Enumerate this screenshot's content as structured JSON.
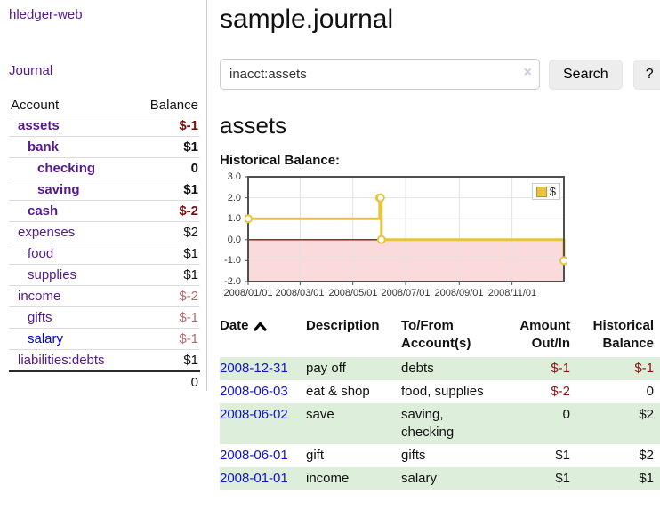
{
  "app": {
    "brand": "hledger-web"
  },
  "nav": {
    "journal": "Journal"
  },
  "header": {
    "title": "sample.journal"
  },
  "search": {
    "value": "inacct:assets",
    "clear_icon": "×",
    "search_button": "Search",
    "help_button": "?"
  },
  "sidebar": {
    "columns": {
      "account": "Account",
      "balance": "Balance"
    },
    "accounts": [
      {
        "name": "assets",
        "balance": "$-1",
        "indent": 0,
        "bold": true,
        "neg": "strong"
      },
      {
        "name": "bank",
        "balance": "$1",
        "indent": 1,
        "bold": true
      },
      {
        "name": "checking",
        "balance": "0",
        "indent": 2,
        "bold": true
      },
      {
        "name": "saving",
        "balance": "$1",
        "indent": 2,
        "bold": true
      },
      {
        "name": "cash",
        "balance": "$-2",
        "indent": 1,
        "bold": true,
        "neg": "strong"
      },
      {
        "name": "expenses",
        "balance": "$2",
        "indent": 0
      },
      {
        "name": "food",
        "balance": "$1",
        "indent": 1
      },
      {
        "name": "supplies",
        "balance": "$1",
        "indent": 1
      },
      {
        "name": "income",
        "balance": "$-2",
        "indent": 0,
        "neg": "soft"
      },
      {
        "name": "gifts",
        "balance": "$-1",
        "indent": 1,
        "neg": "soft"
      },
      {
        "name": "salary",
        "balance": "$-1",
        "indent": 1,
        "neg": "soft",
        "color": "blue"
      },
      {
        "name": "liabilities:debts",
        "balance": "$1",
        "indent": 0
      }
    ],
    "total": "0"
  },
  "main": {
    "account_title": "assets",
    "chart_heading": "Historical Balance:"
  },
  "chart_data": {
    "type": "line",
    "title": "Historical Balance:",
    "step": true,
    "x_range": [
      "2008-01-01",
      "2008-12-31"
    ],
    "ylim": [
      -2,
      3
    ],
    "y_ticks": [
      3,
      2,
      1,
      0,
      -1,
      -2
    ],
    "x_ticks": [
      "2008/01/01",
      "2008/03/01",
      "2008/05/01",
      "2008/07/01",
      "2008/09/01",
      "2008/11/01"
    ],
    "series": [
      {
        "name": "$",
        "color": "#e8c33e",
        "points": [
          [
            "2008-01-01",
            1
          ],
          [
            "2008-06-01",
            2
          ],
          [
            "2008-06-02",
            2
          ],
          [
            "2008-06-03",
            0
          ],
          [
            "2008-12-31",
            -1
          ]
        ]
      }
    ],
    "legend": {
      "label": "$",
      "position": "top-right"
    },
    "grid": true,
    "grid_color": "#e3e3e3",
    "frame_color": "#4f4f4f",
    "zero_line_color": "#8b1111",
    "negative_region_color": "#fadada"
  },
  "register": {
    "columns": [
      "Date",
      "Description",
      "To/From Account(s)",
      "Amount Out/In",
      "Historical Balance"
    ],
    "sort": {
      "column": "Date",
      "direction": "asc"
    },
    "rows": [
      {
        "date": "2008-12-31",
        "description": "pay off",
        "accounts": "debts",
        "amount": "$-1",
        "balance": "$-1",
        "amount_negative": true,
        "balance_negative": true
      },
      {
        "date": "2008-06-03",
        "description": "eat & shop",
        "accounts": "food, supplies",
        "amount": "$-2",
        "balance": "0",
        "amount_negative": true,
        "balance_negative": false
      },
      {
        "date": "2008-06-02",
        "description": "save",
        "accounts": "saving, checking",
        "amount": "0",
        "balance": "$2",
        "amount_negative": false,
        "balance_negative": false
      },
      {
        "date": "2008-06-01",
        "description": "gift",
        "accounts": "gifts",
        "amount": "$1",
        "balance": "$2",
        "amount_negative": false,
        "balance_negative": false
      },
      {
        "date": "2008-01-01",
        "description": "income",
        "accounts": "salary",
        "amount": "$1",
        "balance": "$1",
        "amount_negative": false,
        "balance_negative": false
      }
    ]
  }
}
